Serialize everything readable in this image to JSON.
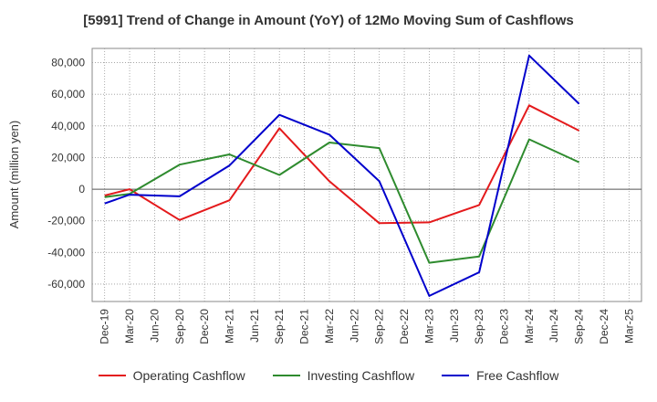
{
  "chart_data": {
    "type": "line",
    "title": "[5991]  Trend of Change in Amount (YoY) of 12Mo Moving Sum of Cashflows",
    "xlabel": "",
    "ylabel": "Amount (million yen)",
    "ylim": [
      -71000,
      89000
    ],
    "yticks": [
      80000,
      60000,
      40000,
      20000,
      0,
      -20000,
      -40000,
      -60000
    ],
    "ytick_labels": [
      "80,000",
      "60,000",
      "40,000",
      "20,000",
      "0",
      "-20,000",
      "-40,000",
      "-60,000"
    ],
    "categories": [
      "Dec-19",
      "Mar-20",
      "Jun-20",
      "Sep-20",
      "Dec-20",
      "Mar-21",
      "Jun-21",
      "Sep-21",
      "Dec-21",
      "Mar-22",
      "Jun-22",
      "Sep-22",
      "Dec-22",
      "Mar-23",
      "Jun-23",
      "Sep-23",
      "Dec-23",
      "Mar-24",
      "Jun-24",
      "Sep-24",
      "Dec-24",
      "Mar-25"
    ],
    "grid": true,
    "legend_position": "bottom",
    "series": [
      {
        "name": "Operating Cashflow",
        "color": "#e41a1c",
        "values": [
          -4000,
          0,
          null,
          -19500,
          null,
          -7000,
          null,
          38500,
          null,
          5000,
          null,
          -21500,
          null,
          -21000,
          null,
          -10000,
          null,
          53000,
          null,
          37000,
          null,
          null
        ]
      },
      {
        "name": "Investing Cashflow",
        "color": "#2e8b2e",
        "values": [
          -5000,
          -3000,
          null,
          15500,
          null,
          22000,
          null,
          9000,
          null,
          29500,
          null,
          26000,
          null,
          -46500,
          null,
          -42500,
          null,
          31500,
          null,
          17000,
          null,
          null
        ]
      },
      {
        "name": "Free Cashflow",
        "color": "#0000cc",
        "values": [
          -9000,
          -3500,
          null,
          -4500,
          null,
          15000,
          null,
          47000,
          null,
          34500,
          null,
          5000,
          null,
          -67500,
          null,
          -52500,
          null,
          84500,
          null,
          54000,
          null,
          null
        ]
      }
    ]
  }
}
